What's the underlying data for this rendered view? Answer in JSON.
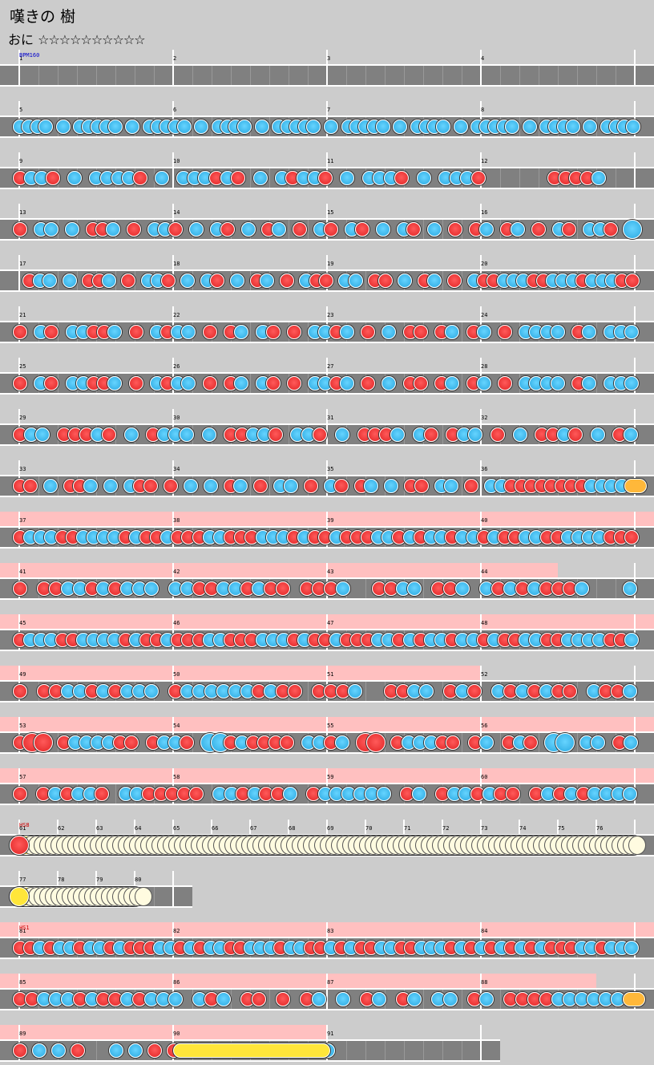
{
  "header": {
    "title": "嘆きの 樹",
    "difficulty_label": "おに",
    "stars": "☆☆☆☆☆☆☆☆☆☆"
  },
  "chart": {
    "notes_colors": {
      "don": "#e83030",
      "ka": "#40bff0",
      "roll": "#ffe63a",
      "balloon": "#ffb83a",
      "lane": "#808080",
      "gogo": "#ffc0c0"
    },
    "events": {
      "bpm": "BPM160",
      "hs_8": "HS8",
      "hs_1": "HS1"
    },
    "rows": [
      {
        "measures": [
          1,
          2,
          3,
          4
        ],
        "gogo": false,
        "event": "bpm",
        "pattern": ""
      },
      {
        "measures": [
          5,
          6,
          7,
          8
        ],
        "gogo": false,
        "pattern": "kkkk.k.kkkkk.k.kkkkk.k.kkkk.k.kkkkk.k.kkkkk.k.kkkk.k.kkkkk.k.kkkk.k.kkkk"
      },
      {
        "measures": [
          9,
          10,
          11,
          12
        ],
        "gogo": false,
        "pattern": "dkkd.k.kkkkd.k.kkkdkd.k.kdkkd.k.kkkd.k.kkkd......ddddk..."
      },
      {
        "measures": [
          13,
          14,
          15,
          16
        ],
        "gogo": false,
        "pattern": "d.kk.k.ddk.d.kkd.k.kd.k.dk.d.kd.kd.k.kd.k.d.dk.dk.d.kd.kkd.K"
      },
      {
        "measures": [
          17,
          18,
          19,
          20
        ],
        "gogo": false,
        "pattern": ".dkk.k.ddk.d.kkd.k.kd.k.dk.d.kdd.kk.dd.k.dk.d.kddkkkddkkkdkkkdd"
      },
      {
        "measures": [
          21,
          22,
          23,
          24
        ],
        "gogo": false,
        "pattern": "d.kd.kkddk.d.kdkk.d.dk.kd.d.kkdk.d.k.dd.dk.dk.d.kkkk.dk.kkk"
      },
      {
        "measures": [
          25,
          26,
          27,
          28
        ],
        "gogo": false,
        "pattern": "d.kd.kkddk.d.kdkk.d.dk.kd.d.kkdk.d.k.dd.dk.dk.d.kkkk.dk.kkk"
      },
      {
        "measures": [
          29,
          30,
          31,
          32
        ],
        "gogo": false,
        "pattern": "dkk.dddkd.k.dkkk.k.ddkkd.kkd.k.dddk.kd.dkk.d.k.ddkd.k.dk"
      },
      {
        "measures": [
          33,
          34,
          35,
          36
        ],
        "gogo": false,
        "pattern": "dd.k.ddk.k.kdd.d.k.k.dk.d.kk.d.kd.dk.k.dd.kk.d.kkddddddddkkkkB"
      },
      {
        "measures": [
          37,
          38,
          39,
          40
        ],
        "gogo": true,
        "pattern": "dkkkddkkkkdkddkdddkkdddkkkdkddkdddkkdkdkkdkkdkddkkddkkkkddd"
      },
      {
        "measures": [
          41,
          42,
          43,
          44
        ],
        "gogo": "partial",
        "pattern": "d.ddkkdkdkkk.kkddkkdkdd.dddk..ddkk.ddk.kdkdkdddk...k"
      },
      {
        "measures": [
          45,
          46,
          47,
          48
        ],
        "gogo": true,
        "pattern": "dkkkddkkkkdkddkdddkkdddkkkdkddkdddkkdkdkkdkkdkddkkddkkkkddk"
      },
      {
        "measures": [
          49,
          50,
          51,
          52
        ],
        "gogo": "partial",
        "pattern": "d.ddkkdkdkkk.dkkkkkkdkdd.dddk..ddkk.dkd.kdkdkdd.kddk"
      },
      {
        "measures": [
          53,
          54,
          55,
          56
        ],
        "gogo": true,
        "pattern": "dDD.dkkkkdd.dkkd.KKdkdddd.kkdk.DD.dkkkdd.dk.dkd.KK.kk.dk"
      },
      {
        "measures": [
          57,
          58,
          59,
          60
        ],
        "gogo": true,
        "pattern": "d.dkdkkd.kkddddd.kkdkddk.dkkkkkk.dk.dkkdkdd.dkdkdkkkk"
      },
      {
        "measures": [
          61,
          62,
          63,
          64,
          65,
          66,
          67,
          68,
          69,
          70,
          71,
          72,
          73,
          74,
          75,
          76
        ],
        "gogo": false,
        "event": "hs_8",
        "roll_big": true
      },
      {
        "measures": [
          77,
          78,
          79,
          80
        ],
        "gogo": false,
        "roll_short": true
      },
      {
        "measures": [
          81,
          82,
          83,
          84
        ],
        "gogo": true,
        "event": "hs_1",
        "pattern": "ddkdkkdkkdkdddkkdkdkkddkkkdkkddkdkddkkddkkkdkdkdkdkdkdddkkdkkk"
      },
      {
        "measures": [
          85,
          86,
          87,
          88
        ],
        "gogo": "partial",
        "pattern": "ddkkkdkddkdkkk.kdk.dd.d.dk.k.dk.dk.kk.dk.ddddkkkkkkB"
      },
      {
        "measures": [
          89,
          90,
          91
        ],
        "gogo": "partial",
        "final": true,
        "pattern": "dkkd.kkddkk.kkkkkR"
      }
    ]
  }
}
